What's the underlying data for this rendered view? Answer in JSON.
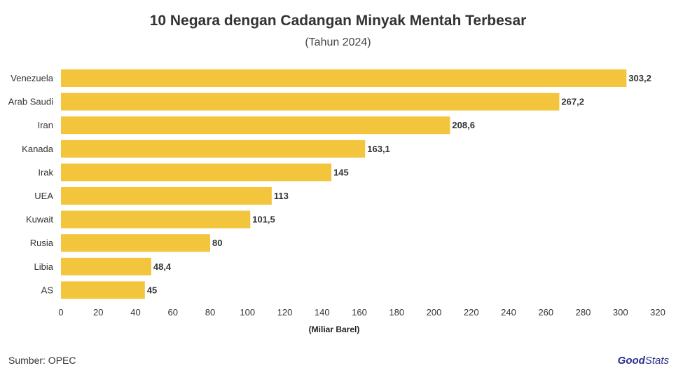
{
  "chart_data": {
    "type": "bar",
    "orientation": "horizontal",
    "title": "10 Negara dengan Cadangan Minyak Mentah Terbesar",
    "subtitle": "(Tahun 2024)",
    "xlabel": "(Miliar Barel)",
    "categories": [
      "Venezuela",
      "Arab Saudi",
      "Iran",
      "Kanada",
      "Irak",
      "UEA",
      "Kuwait",
      "Rusia",
      "Libia",
      "AS"
    ],
    "values": [
      303.2,
      267.2,
      208.6,
      163.1,
      145,
      113,
      101.5,
      80,
      48.4,
      45
    ],
    "value_labels": [
      "303,2",
      "267,2",
      "208,6",
      "163,1",
      "145",
      "113",
      "101,5",
      "80",
      "48,4",
      "45"
    ],
    "xlim": [
      0,
      320
    ],
    "xticks": [
      0,
      20,
      40,
      60,
      80,
      100,
      120,
      140,
      160,
      180,
      200,
      220,
      240,
      260,
      280,
      300,
      320
    ],
    "grid": false,
    "bar_color": "#F2C53D"
  },
  "footer": {
    "source": "Sumber: OPEC",
    "brand_part1": "Good",
    "brand_part2": "Stats",
    "brand_color1": "#2B2F8F",
    "brand_color2": "#2B2F8F"
  }
}
